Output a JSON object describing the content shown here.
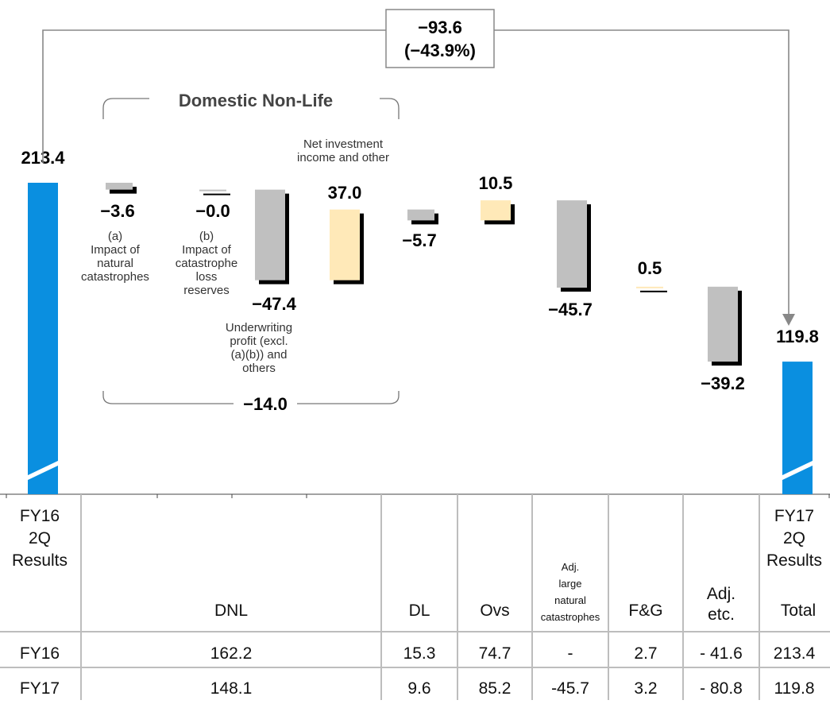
{
  "chart_data": {
    "type": "bar",
    "subtype": "waterfall",
    "bridge": {
      "change": "−93.6",
      "change_pct": "(−43.9%)"
    },
    "group_labels": {
      "top": "Domestic Non-Life",
      "bottom": "−14.0"
    },
    "colors": {
      "total": "#0a8fe0",
      "negative": "#c0c0c0",
      "positive": "#ffe9b8",
      "shadow": "#000000"
    },
    "scale": {
      "value_min": 0,
      "value_max": 213.4,
      "axis_break": true
    },
    "bars": [
      {
        "id": "fy16-total",
        "kind": "total",
        "value": 213.4,
        "start": 0,
        "end": 213.4,
        "label": "213.4"
      },
      {
        "id": "nat-cat",
        "kind": "negative",
        "value": -3.6,
        "start": 213.4,
        "end": 209.8,
        "label": "−3.6",
        "caption": [
          "(a)",
          "Impact of",
          "natural",
          "catastrophes"
        ]
      },
      {
        "id": "cat-reserve",
        "kind": "negative",
        "value": 0.0,
        "start": 209.8,
        "end": 209.8,
        "label": "−0.0",
        "caption": [
          "(b)",
          "Impact of",
          "catastrophe",
          "loss",
          "reserves"
        ]
      },
      {
        "id": "uw-profit",
        "kind": "negative",
        "value": -47.4,
        "start": 209.8,
        "end": 162.4,
        "label": "−47.4",
        "caption": [
          "Underwriting",
          "profit (excl.",
          "(a)(b)) and",
          "others"
        ]
      },
      {
        "id": "net-invest",
        "kind": "positive",
        "value": 37.0,
        "start": 162.4,
        "end": 199.4,
        "label": "37.0",
        "caption": [
          "Net investment",
          "income and other"
        ]
      },
      {
        "id": "dl",
        "kind": "negative",
        "value": -5.7,
        "start": 199.4,
        "end": 193.7,
        "label": "−5.7"
      },
      {
        "id": "ovs",
        "kind": "positive",
        "value": 10.5,
        "start": 193.7,
        "end": 204.2,
        "label": "10.5"
      },
      {
        "id": "adj-cat",
        "kind": "negative",
        "value": -45.7,
        "start": 204.2,
        "end": 158.5,
        "label": "−45.7"
      },
      {
        "id": "fg",
        "kind": "positive",
        "value": 0.5,
        "start": 158.5,
        "end": 159.0,
        "label": "0.5"
      },
      {
        "id": "adj-etc",
        "kind": "negative",
        "value": -39.2,
        "start": 159.0,
        "end": 119.8,
        "label": "−39.2"
      },
      {
        "id": "fy17-total",
        "kind": "total",
        "value": 119.8,
        "start": 0,
        "end": 119.8,
        "label": "119.8"
      }
    ],
    "table": {
      "columns": [
        {
          "id": "fy16",
          "header": [
            "FY16",
            "2Q",
            "Results"
          ]
        },
        {
          "id": "dnl",
          "header": [
            "DNL"
          ]
        },
        {
          "id": "dl",
          "header": [
            "DL"
          ]
        },
        {
          "id": "ovs",
          "header": [
            "Ovs"
          ]
        },
        {
          "id": "adj-cat",
          "header": [
            "Adj.",
            "large",
            "natural",
            "catastrophes"
          ]
        },
        {
          "id": "fg",
          "header": [
            "F&G"
          ]
        },
        {
          "id": "adj-etc",
          "header": [
            "Adj.",
            "etc."
          ]
        },
        {
          "id": "total",
          "header": [
            "FY17",
            "2Q",
            "Results",
            "Total"
          ]
        }
      ],
      "rows": [
        {
          "label": "FY16",
          "cells": [
            "162.2",
            "15.3",
            "74.7",
            "-",
            "2.7",
            "- 41.6",
            "213.4"
          ]
        },
        {
          "label": "FY17",
          "cells": [
            "148.1",
            "9.6",
            "85.2",
            "-45.7",
            "3.2",
            "- 80.8",
            "119.8"
          ]
        }
      ]
    }
  }
}
